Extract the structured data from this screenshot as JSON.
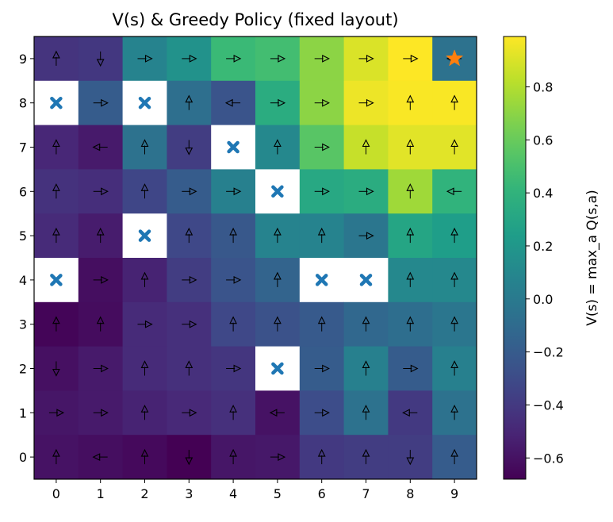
{
  "chart_data": {
    "type": "heatmap",
    "title": "V(s) & Greedy Policy (fixed layout)",
    "xlabel": "",
    "ylabel": "",
    "x_ticks": [
      "0",
      "1",
      "2",
      "3",
      "4",
      "5",
      "6",
      "7",
      "8",
      "9"
    ],
    "y_ticks": [
      "0",
      "1",
      "2",
      "3",
      "4",
      "5",
      "6",
      "7",
      "8",
      "9"
    ],
    "colorbar": {
      "label": "V(s) = max_a Q(s,a)",
      "colormap": "viridis",
      "vmin": -0.68,
      "vmax": 0.99,
      "ticks": [
        -0.6,
        -0.4,
        -0.2,
        0.0,
        0.2,
        0.4,
        0.6,
        0.8
      ],
      "tick_labels": [
        "−0.6",
        "−0.4",
        "−0.2",
        "0.0",
        "0.2",
        "0.4",
        "0.6",
        "0.8"
      ]
    },
    "rows_top_to_bottom": [
      9,
      8,
      7,
      6,
      5,
      4,
      3,
      2,
      1,
      0
    ],
    "values": [
      [
        -0.43,
        -0.41,
        0.07,
        0.17,
        0.45,
        0.48,
        0.7,
        0.9,
        0.99,
        -0.05
      ],
      [
        null,
        -0.2,
        null,
        -0.07,
        -0.25,
        0.35,
        0.7,
        0.95,
        0.98,
        0.98
      ],
      [
        -0.5,
        -0.56,
        -0.05,
        -0.38,
        null,
        0.1,
        0.55,
        0.85,
        0.92,
        0.92
      ],
      [
        -0.44,
        -0.46,
        -0.33,
        -0.2,
        0.05,
        null,
        0.32,
        0.35,
        0.75,
        0.4
      ],
      [
        -0.48,
        -0.55,
        null,
        -0.32,
        -0.22,
        0.07,
        0.07,
        -0.02,
        0.3,
        0.25
      ],
      [
        null,
        -0.62,
        -0.52,
        -0.38,
        -0.25,
        -0.15,
        null,
        null,
        0.1,
        0.1
      ],
      [
        -0.66,
        -0.63,
        -0.48,
        -0.45,
        -0.32,
        -0.26,
        -0.21,
        -0.12,
        -0.08,
        -0.02
      ],
      [
        -0.61,
        -0.56,
        -0.48,
        -0.45,
        -0.42,
        null,
        -0.2,
        0.05,
        -0.2,
        0.05
      ],
      [
        -0.58,
        -0.56,
        -0.52,
        -0.49,
        -0.45,
        -0.6,
        -0.29,
        -0.05,
        -0.4,
        -0.05
      ],
      [
        -0.6,
        -0.62,
        -0.64,
        -0.68,
        -0.58,
        -0.57,
        -0.4,
        -0.38,
        -0.38,
        -0.2
      ]
    ],
    "policy": [
      [
        "up",
        "down",
        "right",
        "right",
        "right",
        "right",
        "right",
        "right",
        "right",
        "left"
      ],
      [
        "",
        "right",
        "",
        "up",
        "left",
        "right",
        "right",
        "right",
        "up",
        "up"
      ],
      [
        "up",
        "left",
        "up",
        "down",
        "",
        "up",
        "right",
        "up",
        "up",
        "up"
      ],
      [
        "up",
        "right",
        "up",
        "right",
        "right",
        "",
        "right",
        "right",
        "up",
        "left"
      ],
      [
        "up",
        "up",
        "",
        "up",
        "up",
        "up",
        "up",
        "right",
        "up",
        "up"
      ],
      [
        "",
        "right",
        "up",
        "right",
        "right",
        "up",
        "",
        "",
        "up",
        "up"
      ],
      [
        "up",
        "up",
        "right",
        "right",
        "up",
        "up",
        "up",
        "up",
        "up",
        "up"
      ],
      [
        "down",
        "right",
        "up",
        "up",
        "right",
        "",
        "right",
        "up",
        "right",
        "up"
      ],
      [
        "right",
        "right",
        "up",
        "right",
        "up",
        "left",
        "right",
        "up",
        "left",
        "up"
      ],
      [
        "up",
        "left",
        "up",
        "down",
        "up",
        "right",
        "up",
        "up",
        "down",
        "up"
      ]
    ],
    "obstacles": [
      [
        8,
        0
      ],
      [
        8,
        2
      ],
      [
        7,
        4
      ],
      [
        6,
        5
      ],
      [
        5,
        2
      ],
      [
        4,
        0
      ],
      [
        4,
        6
      ],
      [
        4,
        7
      ],
      [
        2,
        5
      ]
    ],
    "goal": [
      9,
      9
    ]
  }
}
